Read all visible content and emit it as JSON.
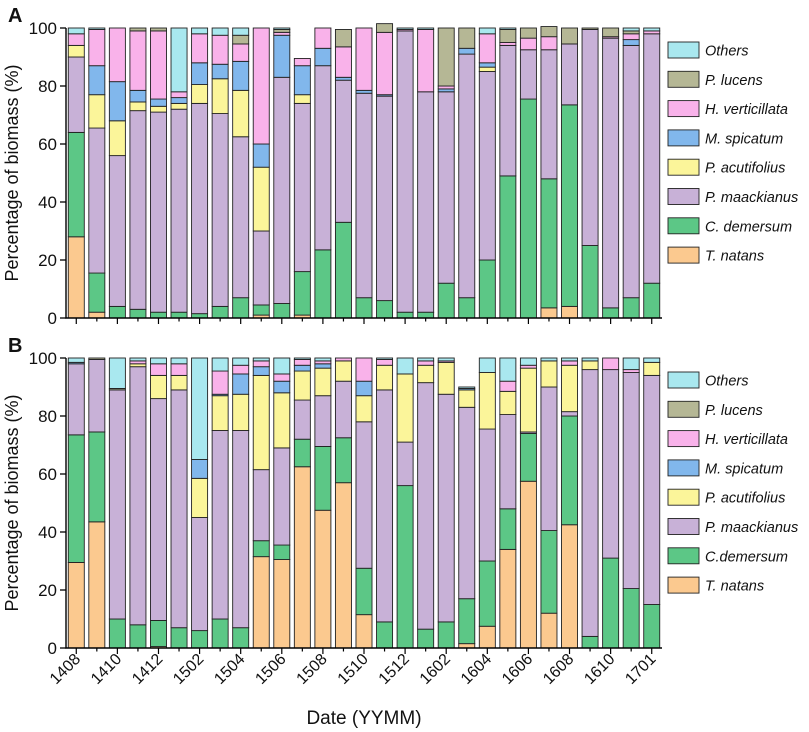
{
  "figure": {
    "x_title": "Date (YYMM)"
  },
  "colors": {
    "T. natans": "#fbc98f",
    "C. demersum": "#5cc786",
    "P. maackianus": "#c8b1d7",
    "P. acutifolius": "#fbf59a",
    "M. spicatum": "#81b7ec",
    "H. verticillata": "#f9b2ea",
    "P. lucens": "#b5b795",
    "Others": "#a9e8ef"
  },
  "chart_data": [
    {
      "type": "bar",
      "stacked": true,
      "panel_label": "A",
      "xlabel": "Date (YYMM)",
      "ylabel": "Percentage of biomass (%)",
      "ylim": [
        0,
        100
      ],
      "yticks": [
        0,
        20,
        40,
        60,
        80,
        100
      ],
      "categories": [
        "1408",
        "1409",
        "1410",
        "1411",
        "1412",
        "1501",
        "1502",
        "1503",
        "1504",
        "1505",
        "1506",
        "1507",
        "1508",
        "1509",
        "1510",
        "1511",
        "1512",
        "1601",
        "1602",
        "1603",
        "1604",
        "1605",
        "1606",
        "1607",
        "1608",
        "1609",
        "1610",
        "1611",
        "1701"
      ],
      "xtick_labels": [
        "1408",
        "1410",
        "1412",
        "1502",
        "1504",
        "1506",
        "1508",
        "1510",
        "1512",
        "1602",
        "1604",
        "1606",
        "1608",
        "1610",
        "1701"
      ],
      "legend": [
        "Others",
        "P. lucens",
        "H. verticillata",
        "M. spicatum",
        "P. acutifolius",
        "P. maackianus",
        "C. demersum",
        "T. natans"
      ],
      "series": [
        {
          "name": "T. natans",
          "values": [
            28,
            2,
            0,
            0,
            0,
            0,
            0,
            0,
            0,
            1,
            0,
            1,
            0,
            0,
            0,
            0,
            0,
            0,
            0,
            0,
            0,
            0,
            0,
            3.5,
            4,
            0,
            0,
            0,
            0
          ]
        },
        {
          "name": "C. demersum",
          "values": [
            36,
            13.5,
            4,
            3,
            2,
            2,
            1.5,
            4,
            7,
            3.5,
            5,
            15,
            23.5,
            33,
            7,
            6,
            2,
            2,
            12,
            7,
            20,
            49,
            75.5,
            44.5,
            69.5,
            25,
            3.5,
            7,
            12
          ]
        },
        {
          "name": "P. maackianus",
          "values": [
            26,
            50,
            52,
            68.5,
            69,
            70,
            72.5,
            66.5,
            55.5,
            25.5,
            78,
            58,
            63.5,
            49,
            70.5,
            70.5,
            97,
            76,
            66,
            84,
            65,
            45,
            17,
            44.5,
            21,
            74.5,
            93,
            87,
            86
          ]
        },
        {
          "name": "P. acutifolius",
          "values": [
            4,
            11.5,
            12,
            3,
            2,
            2,
            6.5,
            12,
            16,
            22,
            0,
            3,
            0,
            0,
            0,
            0,
            0,
            0,
            0,
            0,
            1.5,
            0,
            0,
            0,
            0,
            0,
            0,
            0,
            0
          ]
        },
        {
          "name": "M. spicatum",
          "values": [
            0,
            10,
            13.5,
            4,
            2.5,
            2,
            7.5,
            5,
            10,
            8,
            14.5,
            10,
            6,
            1,
            1,
            0.5,
            0,
            0,
            1,
            2,
            1.5,
            0,
            0,
            0,
            0,
            0,
            0,
            2,
            0
          ]
        },
        {
          "name": "H. verticillata",
          "values": [
            4,
            12.5,
            18.5,
            20.5,
            23.5,
            2,
            10,
            10,
            6,
            40,
            1,
            2.5,
            7,
            10.5,
            21.5,
            21.5,
            0.5,
            21.5,
            1,
            0,
            10,
            1,
            4,
            4.5,
            0,
            0,
            0.5,
            2,
            1
          ]
        },
        {
          "name": "P. lucens",
          "values": [
            0,
            0,
            0,
            1,
            1,
            0,
            0,
            0,
            3,
            0,
            1,
            0,
            0,
            6,
            0,
            3,
            0,
            0,
            20,
            7,
            0,
            4.5,
            3.5,
            3.5,
            5.5,
            0.5,
            3,
            1,
            0
          ]
        },
        {
          "name": "Others",
          "values": [
            2,
            0.5,
            0,
            0,
            0,
            22,
            2,
            2.5,
            2.5,
            0,
            0.5,
            0,
            0,
            0,
            0,
            0,
            0.5,
            0.5,
            0,
            0,
            2,
            0.5,
            0,
            0,
            0,
            0,
            0,
            1,
            1
          ]
        }
      ]
    },
    {
      "type": "bar",
      "stacked": true,
      "panel_label": "B",
      "xlabel": "Date (YYMM)",
      "ylabel": "Percentage of biomass (%)",
      "ylim": [
        0,
        100
      ],
      "yticks": [
        0,
        20,
        40,
        60,
        80,
        100
      ],
      "categories": [
        "1408",
        "1409",
        "1410",
        "1411",
        "1412",
        "1501",
        "1502",
        "1503",
        "1504",
        "1505",
        "1506",
        "1507",
        "1508",
        "1509",
        "1510",
        "1511",
        "1512",
        "1601",
        "1602",
        "1603",
        "1604",
        "1605",
        "1606",
        "1607",
        "1608",
        "1609",
        "1610",
        "1611",
        "1701"
      ],
      "xtick_labels": [
        "1408",
        "1410",
        "1412",
        "1502",
        "1504",
        "1506",
        "1508",
        "1510",
        "1512",
        "1602",
        "1604",
        "1606",
        "1608",
        "1610",
        "1701"
      ],
      "legend": [
        "Others",
        "P. lucens",
        "H. verticillata",
        "M. spicatum",
        "P. acutifolius",
        "P. maackianus",
        "C.demersum",
        "T. natans"
      ],
      "series": [
        {
          "name": "T. natans",
          "values": [
            29.5,
            43.5,
            0,
            0,
            0.5,
            0,
            0,
            0,
            0,
            31.5,
            30.5,
            62.5,
            47.5,
            57,
            11.5,
            0,
            0,
            0,
            0,
            1.5,
            7.5,
            34,
            57.5,
            12,
            42.5,
            0,
            0,
            0,
            0
          ]
        },
        {
          "name": "C. demersum",
          "values": [
            44,
            31,
            10,
            8,
            9,
            7,
            6,
            10,
            7,
            5.5,
            5,
            9.5,
            22,
            15.5,
            16,
            9,
            56,
            6.5,
            9,
            15.5,
            22.5,
            14,
            16.5,
            28.5,
            37.5,
            4,
            31,
            20.5,
            15
          ]
        },
        {
          "name": "P. maackianus",
          "values": [
            24.5,
            25,
            79,
            89,
            76.5,
            82,
            39,
            65,
            68,
            24.5,
            33.5,
            13.5,
            17.5,
            19.5,
            50.5,
            80,
            15,
            85,
            78.5,
            66,
            45.5,
            32.5,
            0.5,
            49.5,
            1.5,
            92,
            65,
            74.5,
            79
          ]
        },
        {
          "name": "P. acutifolius",
          "values": [
            0,
            0,
            0,
            1,
            8,
            5,
            13.5,
            12,
            12.5,
            32.5,
            19,
            10,
            9.5,
            7,
            9,
            8.5,
            23.5,
            6,
            11,
            6,
            19.5,
            8,
            22,
            9,
            16,
            3,
            0,
            0,
            4.5
          ]
        },
        {
          "name": "M. spicatum",
          "values": [
            0.5,
            0,
            0,
            0,
            0,
            0,
            6.5,
            0.5,
            7,
            3,
            4,
            2,
            1.5,
            0,
            5,
            0,
            0,
            0,
            0,
            0.5,
            0,
            0,
            0,
            0,
            0,
            0,
            0,
            0,
            0
          ]
        },
        {
          "name": "H. verticillata",
          "values": [
            0,
            0,
            0,
            1,
            4,
            4,
            0,
            8,
            3,
            2,
            2.5,
            2,
            1,
            1,
            8,
            2,
            0,
            1.5,
            0.5,
            0,
            0,
            3.5,
            1,
            0,
            1.5,
            0,
            4,
            1,
            0
          ]
        },
        {
          "name": "P. lucens",
          "values": [
            0,
            0.5,
            0.5,
            0,
            0,
            0,
            0,
            0,
            0,
            0,
            0,
            0,
            0,
            0,
            0,
            0,
            0,
            0,
            0,
            0,
            0,
            0,
            0,
            0,
            0,
            0,
            0,
            0,
            0
          ]
        },
        {
          "name": "Others",
          "values": [
            1.5,
            0,
            10.5,
            1,
            2,
            2,
            35,
            4.5,
            2.5,
            1,
            5.5,
            0.5,
            1,
            0,
            0,
            0.5,
            5.5,
            1,
            1,
            0.5,
            5,
            8,
            2.5,
            1,
            1,
            1,
            0,
            4,
            1.5
          ]
        }
      ]
    }
  ]
}
